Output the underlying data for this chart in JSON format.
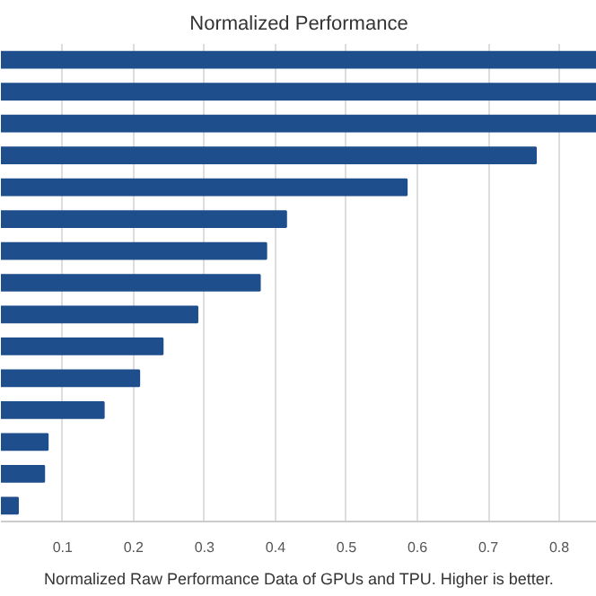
{
  "chart_data": {
    "type": "bar",
    "orientation": "horizontal",
    "title": "Normalized Performance",
    "categories": [
      null,
      null,
      null,
      null,
      null,
      null,
      null,
      null,
      null,
      null,
      null,
      null,
      null,
      null,
      null
    ],
    "values": [
      0.853,
      0.853,
      0.853,
      0.767,
      0.585,
      0.415,
      0.387,
      0.378,
      0.29,
      0.241,
      0.208,
      0.158,
      0.079,
      0.074,
      0.037
    ],
    "color": "#1f4e8c",
    "xlim": [
      0.013,
      0.853
    ],
    "xticks": [
      0.1,
      0.2,
      0.3,
      0.4,
      0.5,
      0.6,
      0.7,
      0.8
    ],
    "grid": "x",
    "tick_labels": "x",
    "annotations": [
      "Normalized Raw Performance Data of GPUs and TPU. Higher is better."
    ]
  }
}
